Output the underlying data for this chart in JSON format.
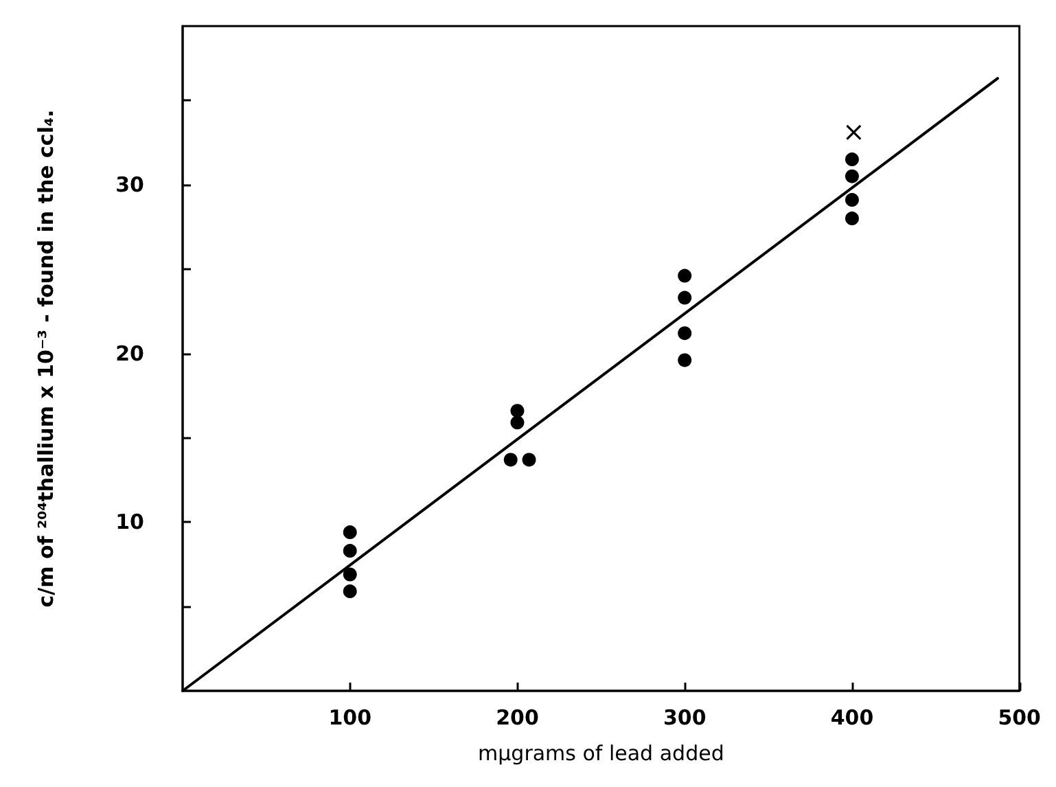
{
  "chart_data": {
    "type": "scatter",
    "xlabel": "mμgrams of lead added",
    "ylabel": "c/m of ²⁰⁴thallium x 10⁻³ - found in the ccl₄.",
    "xlim": [
      0,
      500
    ],
    "xticks": [
      100,
      200,
      300,
      400,
      500
    ],
    "ylim": [
      0,
      39.4
    ],
    "yticks": [
      {
        "value": 5,
        "label": null
      },
      10,
      {
        "value": 15,
        "label": null
      },
      20,
      {
        "value": 25,
        "label": null
      },
      30,
      {
        "value": 35,
        "label": null
      }
    ],
    "grid": false,
    "series": [
      {
        "marker": "circle",
        "color": "#000000",
        "x": [
          100,
          100,
          100,
          100,
          196,
          200,
          200,
          207,
          300,
          300,
          300,
          300,
          400,
          400,
          400,
          400
        ],
        "values": [
          9.4,
          8.3,
          6.9,
          5.9,
          13.7,
          16.6,
          15.9,
          13.7,
          24.6,
          23.3,
          21.2,
          19.6,
          31.5,
          30.5,
          29.1,
          28.0
        ]
      },
      {
        "marker": "cross",
        "color": "#000000",
        "x": [
          401
        ],
        "values": [
          33.1
        ]
      },
      {
        "type": "line",
        "marker": "none",
        "line_style": "solid",
        "color": "#000000",
        "x": [
          0,
          487
        ],
        "values": [
          0,
          36.3
        ]
      }
    ]
  }
}
